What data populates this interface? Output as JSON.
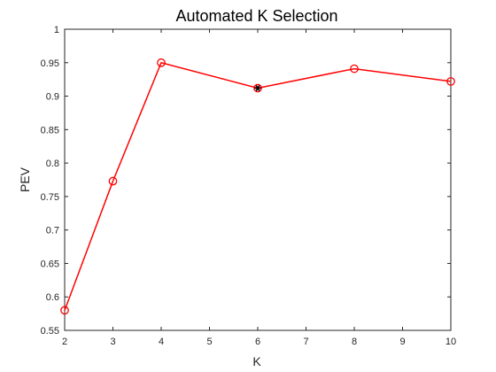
{
  "chart_data": {
    "type": "line",
    "title": "Automated K Selection",
    "xlabel": "K",
    "ylabel": "PEV",
    "xlim": [
      2,
      10
    ],
    "ylim": [
      0.55,
      1
    ],
    "xticks": [
      "2",
      "3",
      "4",
      "5",
      "6",
      "7",
      "8",
      "9",
      "10"
    ],
    "yticks": [
      "0.55",
      "0.6",
      "0.65",
      "0.7",
      "0.75",
      "0.8",
      "0.85",
      "0.9",
      "0.95",
      "1"
    ],
    "grid": false,
    "legend": null,
    "series": [
      {
        "color": "#ff0000",
        "marker": "circle",
        "points": [
          {
            "x": 2,
            "y": 0.58
          },
          {
            "x": 3,
            "y": 0.773
          },
          {
            "x": 4,
            "y": 0.95
          },
          {
            "x": 6,
            "y": 0.912
          },
          {
            "x": 8,
            "y": 0.941
          },
          {
            "x": 10,
            "y": 0.922
          }
        ]
      }
    ],
    "selected_point": {
      "x": 6,
      "y": 0.912,
      "marker": "asterisk",
      "color": "#000000"
    }
  }
}
